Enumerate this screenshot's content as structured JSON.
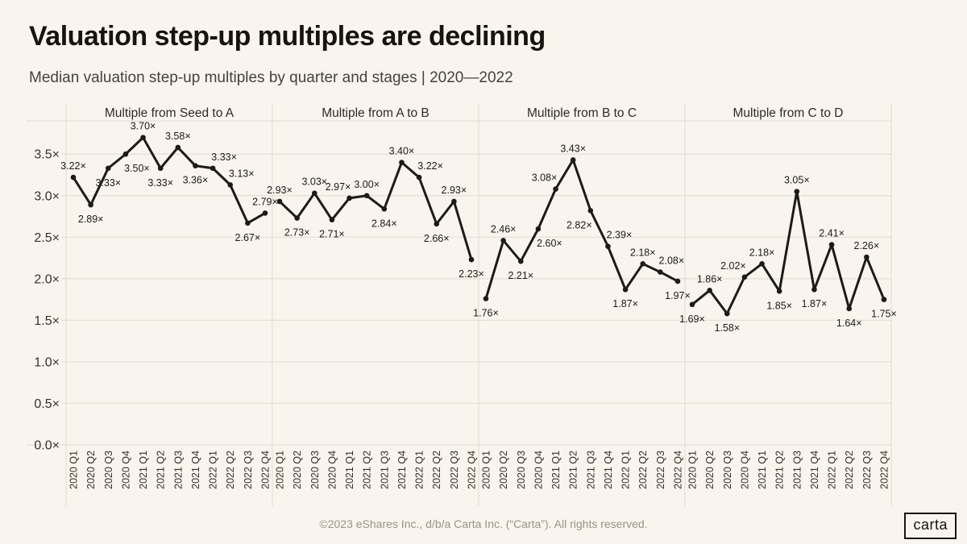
{
  "page": {
    "title": "Valuation step-up multiples are declining",
    "subtitle": "Median valuation step-up multiples by quarter and stages | 2020—2022",
    "footer": "©2023 eShares Inc., d/b/a Carta Inc. (“Carta”). All rights reserved.",
    "logo_text": "carta",
    "background_color": "#f9f5ee"
  },
  "chart_data": {
    "type": "line",
    "title": "Valuation step-up multiples are declining",
    "subtitle": "Median valuation step-up multiples by quarter and stages | 2020—2022",
    "x_categories": [
      "2020 Q1",
      "2020 Q2",
      "2020 Q3",
      "2020 Q4",
      "2021 Q1",
      "2021 Q2",
      "2021 Q3",
      "2021 Q4",
      "2022 Q1",
      "2022 Q2",
      "2022 Q3",
      "2022 Q4"
    ],
    "y_ticks": [
      0.0,
      0.5,
      1.0,
      1.5,
      2.0,
      2.5,
      3.0,
      3.5
    ],
    "ylim": [
      0,
      3.9
    ],
    "value_suffix": "×",
    "grid": true,
    "legend": "none",
    "line_color": "#1d1b17",
    "grid_color": "#e3dfd7",
    "label_color": "#1b1916",
    "tick_color": "#33302a",
    "panels": [
      {
        "title": "Multiple from Seed to A",
        "values": [
          3.22,
          2.89,
          3.33,
          3.5,
          3.7,
          3.33,
          3.58,
          3.36,
          3.33,
          3.13,
          2.67,
          2.79
        ],
        "label_pos": [
          "a",
          "b",
          "b",
          "br",
          "a",
          "b",
          "a",
          "b",
          "ar",
          "ar",
          "b",
          "a"
        ]
      },
      {
        "title": "Multiple from A to B",
        "values": [
          2.93,
          2.73,
          3.03,
          2.71,
          2.97,
          3.0,
          2.84,
          3.4,
          3.22,
          2.66,
          2.93,
          2.23
        ],
        "label_pos": [
          "a",
          "b",
          "a",
          "b",
          "al",
          "a",
          "b",
          "a",
          "ar",
          "b",
          "a",
          "b"
        ]
      },
      {
        "title": "Multiple from B to C",
        "values": [
          1.76,
          2.46,
          2.21,
          2.6,
          3.08,
          3.43,
          2.82,
          2.39,
          1.87,
          2.18,
          2.08,
          1.97
        ],
        "label_pos": [
          "b",
          "a",
          "b",
          "br",
          "al",
          "a",
          "bl",
          "ar",
          "b",
          "a",
          "ar",
          "b"
        ]
      },
      {
        "title": "Multiple from C to D",
        "values": [
          1.69,
          1.86,
          1.58,
          2.02,
          2.18,
          1.85,
          3.05,
          1.87,
          2.41,
          1.64,
          2.26,
          1.75
        ],
        "label_pos": [
          "b",
          "a",
          "b",
          "al",
          "a",
          "b",
          "a",
          "b",
          "a",
          "b",
          "a",
          "b"
        ]
      }
    ]
  }
}
